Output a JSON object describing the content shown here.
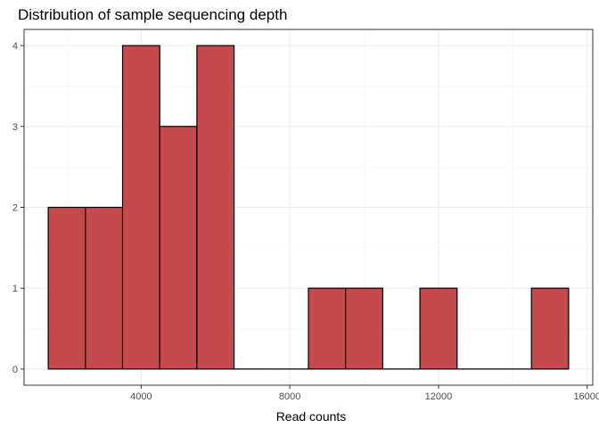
{
  "chart_data": {
    "type": "bar",
    "title": "Distribution of sample sequencing depth",
    "xlabel": "Read counts",
    "ylabel": "",
    "bin_width": 1000,
    "bins": [
      {
        "x": 2000,
        "count": 2
      },
      {
        "x": 3000,
        "count": 2
      },
      {
        "x": 4000,
        "count": 4
      },
      {
        "x": 5000,
        "count": 3
      },
      {
        "x": 6000,
        "count": 4
      },
      {
        "x": 7000,
        "count": 0
      },
      {
        "x": 8000,
        "count": 0
      },
      {
        "x": 9000,
        "count": 1
      },
      {
        "x": 10000,
        "count": 1
      },
      {
        "x": 11000,
        "count": 0
      },
      {
        "x": 12000,
        "count": 1
      },
      {
        "x": 13000,
        "count": 0
      },
      {
        "x": 14000,
        "count": 0
      },
      {
        "x": 15000,
        "count": 1
      }
    ],
    "xlim": [
      850,
      16150
    ],
    "ylim": [
      -0.2,
      4.2
    ],
    "x_ticks": [
      4000,
      8000,
      12000,
      16000
    ],
    "x_tick_labels": [
      "4000",
      "8000",
      "12000",
      "16000"
    ],
    "y_ticks": [
      0,
      1,
      2,
      3,
      4
    ],
    "y_tick_labels": [
      "0",
      "1",
      "2",
      "3",
      "4"
    ],
    "grid": true,
    "bar_color": "#c44a4d",
    "bar_edge_color": "#000000"
  }
}
